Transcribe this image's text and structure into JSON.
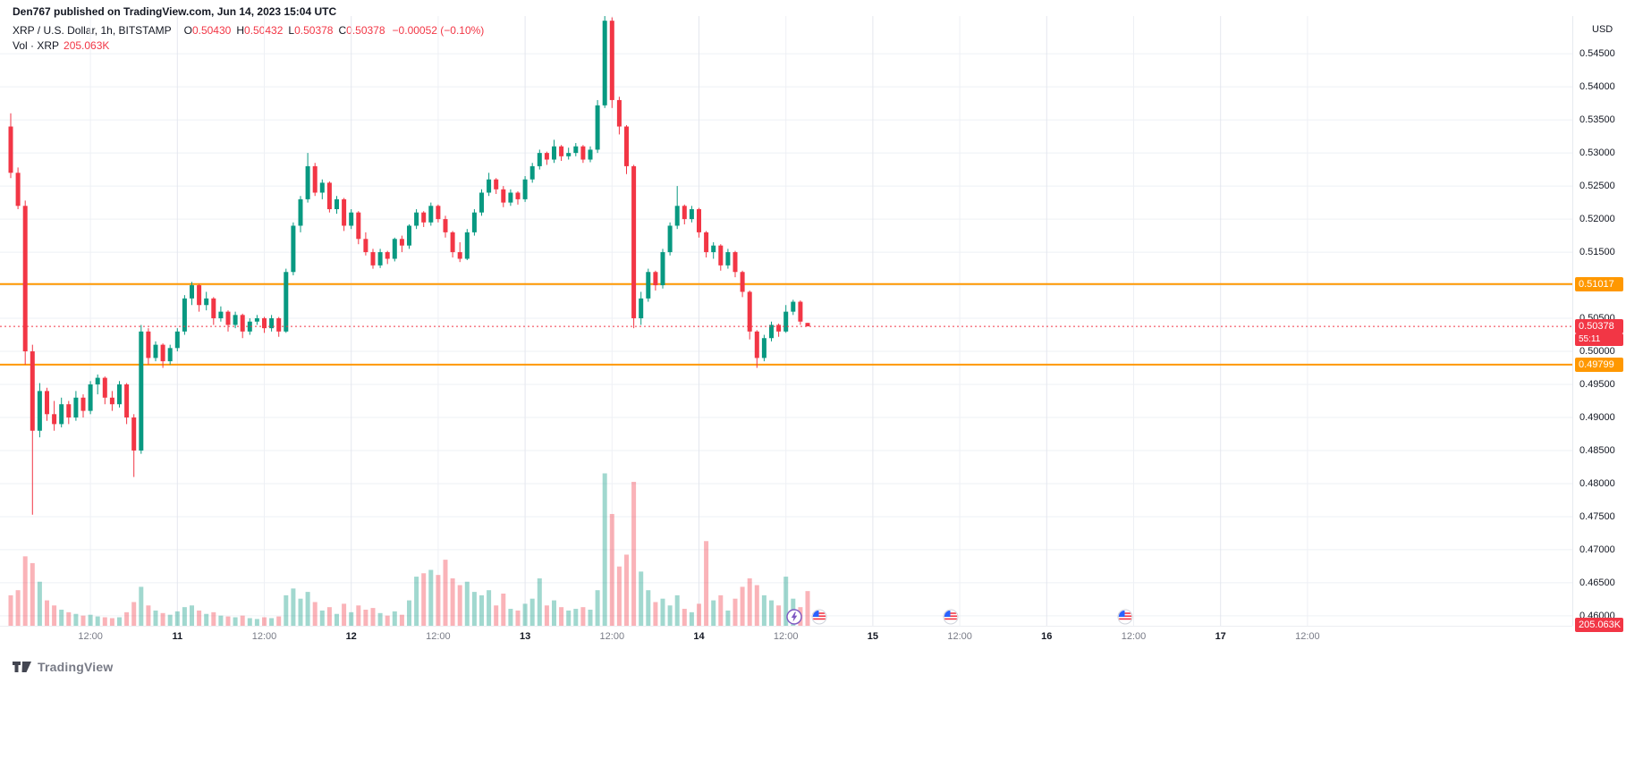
{
  "header": {
    "published": "Den767 published on TradingView.com, Jun 14, 2023 15:04 UTC",
    "symbol_title": "XRP / U.S. Dollar, 1h, BITSTAMP",
    "ohlc": [
      {
        "k": "O",
        "v": "0.50430"
      },
      {
        "k": "H",
        "v": "0.50432"
      },
      {
        "k": "L",
        "v": "0.50378"
      },
      {
        "k": "C",
        "v": "0.50378"
      }
    ],
    "change": "−0.00052 (−0.10%)",
    "vol_label": "Vol · XRP",
    "vol_value": "205.063K"
  },
  "axis": {
    "currency": "USD",
    "price_ticks": [
      {
        "t": "0.54500",
        "p": 0.545
      },
      {
        "t": "0.54000",
        "p": 0.54
      },
      {
        "t": "0.53500",
        "p": 0.535
      },
      {
        "t": "0.53000",
        "p": 0.53
      },
      {
        "t": "0.52500",
        "p": 0.525
      },
      {
        "t": "0.52000",
        "p": 0.52
      },
      {
        "t": "0.51500",
        "p": 0.515
      },
      {
        "t": "0.50500",
        "p": 0.505
      },
      {
        "t": "0.50000",
        "p": 0.5
      },
      {
        "t": "0.49500",
        "p": 0.495
      },
      {
        "t": "0.49000",
        "p": 0.49
      },
      {
        "t": "0.48500",
        "p": 0.485
      },
      {
        "t": "0.48000",
        "p": 0.48
      },
      {
        "t": "0.47500",
        "p": 0.475
      },
      {
        "t": "0.47000",
        "p": 0.47
      },
      {
        "t": "0.46500",
        "p": 0.465
      },
      {
        "t": "0.46000",
        "p": 0.46
      }
    ],
    "time_ticks": [
      {
        "t": "12:00",
        "i": 11,
        "m": false
      },
      {
        "t": "11",
        "i": 23,
        "m": true
      },
      {
        "t": "12:00",
        "i": 35,
        "m": false
      },
      {
        "t": "12",
        "i": 47,
        "m": true
      },
      {
        "t": "12:00",
        "i": 59,
        "m": false
      },
      {
        "t": "13",
        "i": 71,
        "m": true
      },
      {
        "t": "12:00",
        "i": 83,
        "m": false
      },
      {
        "t": "14",
        "i": 95,
        "m": true
      },
      {
        "t": "12:00",
        "i": 107,
        "m": false
      },
      {
        "t": "15",
        "i": 119,
        "m": true
      },
      {
        "t": "12:00",
        "i": 131,
        "m": false
      },
      {
        "t": "16",
        "i": 143,
        "m": true
      },
      {
        "t": "12:00",
        "i": 155,
        "m": false
      },
      {
        "t": "17",
        "i": 167,
        "m": true
      },
      {
        "t": "12:00",
        "i": 179,
        "m": false
      }
    ],
    "level_labels": [
      {
        "value": "0.51017",
        "price": 0.51017
      },
      {
        "value": "0.49799",
        "price": 0.49799
      }
    ],
    "last_label": {
      "value": "0.50378",
      "price": 0.50378,
      "countdown": "55:11"
    },
    "volume_axis_label": "205.063K"
  },
  "colors": {
    "up": "#089981",
    "down": "#f23645",
    "level": "#ff9800",
    "level_label_bg": "#ff9800",
    "last_label_bg": "#f23645",
    "grid": "#eef0f5",
    "grid_major": "#e4e7ee"
  },
  "markers": [
    {
      "type": "lightning",
      "i": 108.1
    },
    {
      "type": "us-flag",
      "i": 111.6
    },
    {
      "type": "us-flag",
      "i": 129.8
    },
    {
      "type": "us-flag",
      "i": 153.8
    }
  ],
  "footer": {
    "logo_text": "TradingView"
  },
  "chart_data": {
    "type": "candlestick+volume",
    "title": "XRP / U.S. Dollar, 1h, BITSTAMP",
    "symbol": "XRP/USD",
    "interval": "1h",
    "exchange": "BITSTAMP",
    "ylabel": "USD",
    "ylim": [
      0.4585,
      0.5507
    ],
    "grid": true,
    "legend_position": "none",
    "price_gridlines": [
      0.46,
      0.465,
      0.47,
      0.475,
      0.48,
      0.485,
      0.49,
      0.495,
      0.5,
      0.505,
      0.51,
      0.515,
      0.52,
      0.525,
      0.53,
      0.535,
      0.54,
      0.545
    ],
    "levels": [
      0.51017,
      0.49799
    ],
    "last_price": 0.50378,
    "last_ohlc": {
      "open": 0.5043,
      "high": 0.50432,
      "low": 0.50378,
      "close": 0.50378
    },
    "total_volume_label_k": 205.063,
    "volume_max_k": 3600,
    "x_axis": {
      "x0": 12,
      "step": 8.1
    },
    "candles_format": [
      "open",
      "high",
      "low",
      "close",
      "volume_k"
    ],
    "candles": [
      [
        0.534,
        0.536,
        0.5262,
        0.527,
        180
      ],
      [
        0.527,
        0.5278,
        0.5215,
        0.522,
        210
      ],
      [
        0.522,
        0.5228,
        0.498,
        0.5,
        410
      ],
      [
        0.5,
        0.501,
        0.4753,
        0.488,
        370
      ],
      [
        0.488,
        0.4952,
        0.487,
        0.494,
        260
      ],
      [
        0.494,
        0.4945,
        0.4895,
        0.4905,
        150
      ],
      [
        0.4905,
        0.4925,
        0.488,
        0.489,
        120
      ],
      [
        0.489,
        0.493,
        0.4885,
        0.492,
        95
      ],
      [
        0.492,
        0.4925,
        0.489,
        0.49,
        80
      ],
      [
        0.49,
        0.494,
        0.4895,
        0.493,
        70
      ],
      [
        0.493,
        0.4935,
        0.49,
        0.491,
        60
      ],
      [
        0.491,
        0.4955,
        0.4905,
        0.495,
        65
      ],
      [
        0.495,
        0.4965,
        0.4935,
        0.496,
        55
      ],
      [
        0.496,
        0.4962,
        0.492,
        0.493,
        50
      ],
      [
        0.493,
        0.494,
        0.491,
        0.492,
        45
      ],
      [
        0.492,
        0.4955,
        0.4915,
        0.495,
        50
      ],
      [
        0.495,
        0.4952,
        0.489,
        0.49,
        80
      ],
      [
        0.49,
        0.4905,
        0.481,
        0.485,
        140
      ],
      [
        0.485,
        0.504,
        0.4845,
        0.503,
        230
      ],
      [
        0.503,
        0.5035,
        0.498,
        0.499,
        120
      ],
      [
        0.499,
        0.5015,
        0.4985,
        0.501,
        90
      ],
      [
        0.501,
        0.5012,
        0.4975,
        0.4985,
        75
      ],
      [
        0.4985,
        0.501,
        0.498,
        0.5005,
        65
      ],
      [
        0.5005,
        0.5035,
        0.5,
        0.503,
        85
      ],
      [
        0.503,
        0.5085,
        0.5025,
        0.508,
        110
      ],
      [
        0.508,
        0.5105,
        0.507,
        0.51,
        120
      ],
      [
        0.51,
        0.5102,
        0.506,
        0.507,
        90
      ],
      [
        0.507,
        0.509,
        0.5062,
        0.508,
        70
      ],
      [
        0.508,
        0.5082,
        0.504,
        0.505,
        80
      ],
      [
        0.505,
        0.5068,
        0.5045,
        0.506,
        60
      ],
      [
        0.506,
        0.5062,
        0.503,
        0.504,
        55
      ],
      [
        0.504,
        0.506,
        0.5035,
        0.5055,
        50
      ],
      [
        0.5055,
        0.5057,
        0.502,
        0.503,
        60
      ],
      [
        0.503,
        0.505,
        0.5025,
        0.5045,
        45
      ],
      [
        0.5045,
        0.5055,
        0.504,
        0.505,
        40
      ],
      [
        0.505,
        0.5052,
        0.5028,
        0.5035,
        50
      ],
      [
        0.5035,
        0.5055,
        0.503,
        0.505,
        45
      ],
      [
        0.505,
        0.5052,
        0.5022,
        0.503,
        55
      ],
      [
        0.503,
        0.5125,
        0.5028,
        0.512,
        180
      ],
      [
        0.512,
        0.5195,
        0.5115,
        0.519,
        220
      ],
      [
        0.519,
        0.5235,
        0.518,
        0.523,
        160
      ],
      [
        0.523,
        0.53,
        0.5225,
        0.528,
        200
      ],
      [
        0.528,
        0.5285,
        0.5235,
        0.524,
        140
      ],
      [
        0.524,
        0.526,
        0.523,
        0.5255,
        90
      ],
      [
        0.5255,
        0.5257,
        0.521,
        0.5215,
        110
      ],
      [
        0.5215,
        0.5235,
        0.5208,
        0.523,
        70
      ],
      [
        0.523,
        0.5232,
        0.5182,
        0.519,
        130
      ],
      [
        0.519,
        0.5215,
        0.5185,
        0.521,
        80
      ],
      [
        0.521,
        0.5212,
        0.5162,
        0.517,
        120
      ],
      [
        0.517,
        0.518,
        0.5145,
        0.515,
        95
      ],
      [
        0.515,
        0.5155,
        0.5125,
        0.513,
        105
      ],
      [
        0.513,
        0.5155,
        0.5126,
        0.515,
        75
      ],
      [
        0.515,
        0.5152,
        0.5132,
        0.514,
        60
      ],
      [
        0.514,
        0.5172,
        0.5136,
        0.517,
        85
      ],
      [
        0.517,
        0.5175,
        0.515,
        0.516,
        65
      ],
      [
        0.516,
        0.5192,
        0.5155,
        0.519,
        150
      ],
      [
        0.519,
        0.5215,
        0.5185,
        0.521,
        290
      ],
      [
        0.521,
        0.5212,
        0.5188,
        0.5195,
        310
      ],
      [
        0.5195,
        0.5225,
        0.519,
        0.522,
        330
      ],
      [
        0.522,
        0.5222,
        0.5195,
        0.52,
        300
      ],
      [
        0.52,
        0.5205,
        0.5172,
        0.518,
        390
      ],
      [
        0.518,
        0.5182,
        0.5142,
        0.515,
        280
      ],
      [
        0.515,
        0.5165,
        0.5135,
        0.514,
        240
      ],
      [
        0.514,
        0.5185,
        0.5138,
        0.518,
        260
      ],
      [
        0.518,
        0.5215,
        0.5175,
        0.521,
        200
      ],
      [
        0.521,
        0.5245,
        0.5205,
        0.524,
        180
      ],
      [
        0.524,
        0.527,
        0.5235,
        0.526,
        210
      ],
      [
        0.526,
        0.5262,
        0.5238,
        0.5245,
        120
      ],
      [
        0.5245,
        0.525,
        0.5218,
        0.5225,
        190
      ],
      [
        0.5225,
        0.5245,
        0.522,
        0.524,
        100
      ],
      [
        0.524,
        0.5242,
        0.5222,
        0.523,
        90
      ],
      [
        0.523,
        0.5265,
        0.5226,
        0.526,
        130
      ],
      [
        0.526,
        0.5285,
        0.5255,
        0.528,
        160
      ],
      [
        0.528,
        0.5305,
        0.5275,
        0.53,
        280
      ],
      [
        0.53,
        0.5302,
        0.5282,
        0.529,
        120
      ],
      [
        0.529,
        0.532,
        0.5285,
        0.531,
        150
      ],
      [
        0.531,
        0.5312,
        0.5288,
        0.5295,
        110
      ],
      [
        0.5295,
        0.5308,
        0.529,
        0.53,
        90
      ],
      [
        0.53,
        0.5315,
        0.5295,
        0.531,
        100
      ],
      [
        0.531,
        0.5312,
        0.5285,
        0.529,
        110
      ],
      [
        0.529,
        0.531,
        0.5286,
        0.5305,
        95
      ],
      [
        0.5305,
        0.538,
        0.53,
        0.5372,
        210
      ],
      [
        0.5372,
        0.551,
        0.5368,
        0.55,
        900
      ],
      [
        0.55,
        0.5505,
        0.5368,
        0.538,
        660
      ],
      [
        0.538,
        0.5385,
        0.5328,
        0.534,
        350
      ],
      [
        0.534,
        0.5342,
        0.5268,
        0.528,
        420
      ],
      [
        0.528,
        0.5282,
        0.5035,
        0.505,
        850
      ],
      [
        0.505,
        0.509,
        0.504,
        0.508,
        320
      ],
      [
        0.508,
        0.5125,
        0.5075,
        0.512,
        210
      ],
      [
        0.512,
        0.5122,
        0.5092,
        0.51,
        140
      ],
      [
        0.51,
        0.5155,
        0.5095,
        0.515,
        160
      ],
      [
        0.515,
        0.5195,
        0.5145,
        0.519,
        120
      ],
      [
        0.519,
        0.525,
        0.5185,
        0.522,
        180
      ],
      [
        0.522,
        0.5222,
        0.5192,
        0.52,
        100
      ],
      [
        0.52,
        0.522,
        0.5195,
        0.5215,
        80
      ],
      [
        0.5215,
        0.5217,
        0.5172,
        0.518,
        130
      ],
      [
        0.518,
        0.5182,
        0.5142,
        0.515,
        500
      ],
      [
        0.515,
        0.5165,
        0.514,
        0.516,
        150
      ],
      [
        0.516,
        0.5162,
        0.5122,
        0.513,
        180
      ],
      [
        0.513,
        0.5155,
        0.5125,
        0.515,
        90
      ],
      [
        0.515,
        0.5152,
        0.5112,
        0.512,
        160
      ],
      [
        0.512,
        0.5122,
        0.5082,
        0.509,
        230
      ],
      [
        0.509,
        0.5092,
        0.5018,
        0.503,
        280
      ],
      [
        0.503,
        0.5032,
        0.4975,
        0.499,
        240
      ],
      [
        0.499,
        0.5025,
        0.4985,
        0.502,
        180
      ],
      [
        0.502,
        0.5045,
        0.5015,
        0.504,
        150
      ],
      [
        0.504,
        0.5042,
        0.5022,
        0.503,
        120
      ],
      [
        0.503,
        0.507,
        0.5028,
        0.506,
        290
      ],
      [
        0.506,
        0.5078,
        0.5055,
        0.5075,
        160
      ],
      [
        0.5075,
        0.5077,
        0.504,
        0.5045,
        110
      ],
      [
        0.5043,
        0.50432,
        0.50378,
        0.50378,
        205
      ]
    ]
  }
}
